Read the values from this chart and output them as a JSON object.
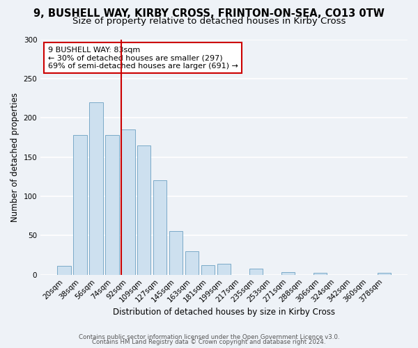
{
  "title": "9, BUSHELL WAY, KIRBY CROSS, FRINTON-ON-SEA, CO13 0TW",
  "subtitle": "Size of property relative to detached houses in Kirby Cross",
  "xlabel": "Distribution of detached houses by size in Kirby Cross",
  "ylabel": "Number of detached properties",
  "bar_labels": [
    "20sqm",
    "38sqm",
    "56sqm",
    "74sqm",
    "92sqm",
    "109sqm",
    "127sqm",
    "145sqm",
    "163sqm",
    "181sqm",
    "199sqm",
    "217sqm",
    "235sqm",
    "253sqm",
    "271sqm",
    "288sqm",
    "306sqm",
    "324sqm",
    "342sqm",
    "360sqm",
    "378sqm"
  ],
  "bar_values": [
    11,
    178,
    220,
    178,
    185,
    165,
    120,
    56,
    30,
    12,
    14,
    0,
    8,
    0,
    3,
    0,
    2,
    0,
    0,
    0,
    2
  ],
  "bar_color": "#cde0ef",
  "bar_edge_color": "#7aaac8",
  "ylim": [
    0,
    300
  ],
  "yticks": [
    0,
    50,
    100,
    150,
    200,
    250,
    300
  ],
  "vline_x": 3.57,
  "vline_color": "#cc0000",
  "annotation_text": "9 BUSHELL WAY: 83sqm\n← 30% of detached houses are smaller (297)\n69% of semi-detached houses are larger (691) →",
  "annotation_box_color": "#ffffff",
  "annotation_box_edge": "#cc0000",
  "footer1": "Contains HM Land Registry data © Crown copyright and database right 2024.",
  "footer2": "Contains public sector information licensed under the Open Government Licence v3.0.",
  "bg_color": "#eef2f7",
  "grid_color": "#ffffff",
  "title_fontsize": 10.5,
  "subtitle_fontsize": 9.5
}
